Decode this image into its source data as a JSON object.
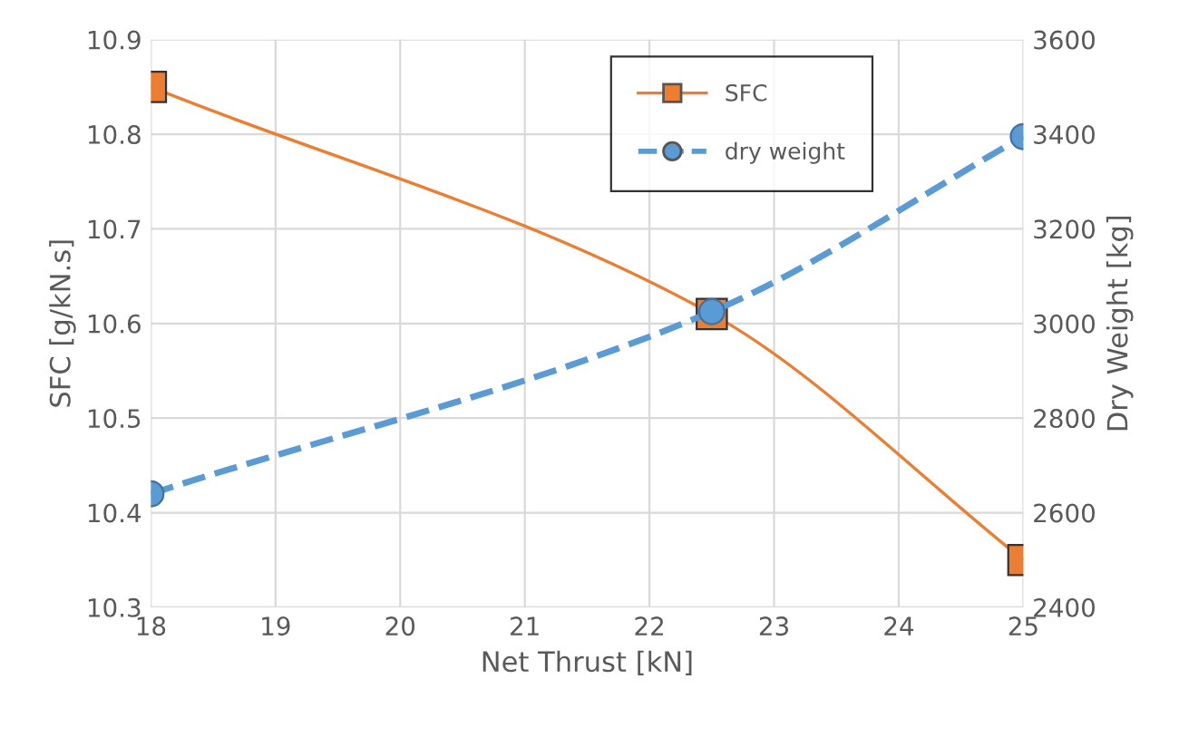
{
  "chart_data": {
    "type": "line",
    "xlabel": "Net Thrust [kN]",
    "ylabel": "SFC [g/kN.s]",
    "y2label": "Dry Weight [kg]",
    "x": [
      18,
      22.5,
      25
    ],
    "series": [
      {
        "name": "SFC",
        "color": "#ed7d31",
        "values": [
          10.85,
          10.61,
          10.35
        ],
        "marker": "square",
        "line_style": "solid"
      },
      {
        "name": "dry weight",
        "color": "#5b9bd5",
        "values": [
          2640,
          3025,
          3395
        ],
        "axis": "y2",
        "marker": "circle",
        "line_style": "dashed"
      }
    ],
    "xlim": [
      18,
      25
    ],
    "xticks": [
      18,
      19,
      20,
      21,
      22,
      23,
      24,
      25
    ],
    "ylim": [
      10.3,
      10.9
    ],
    "yticks": [
      {
        "value": 10.3,
        "label": "10.3"
      },
      {
        "value": 10.4,
        "label": "10.4"
      },
      {
        "value": 10.5,
        "label": "10.5"
      },
      {
        "value": 10.6,
        "label": "10.6"
      },
      {
        "value": 10.7,
        "label": "10.7"
      },
      {
        "value": 10.8,
        "label": "10.8"
      },
      {
        "value": 10.9,
        "label": "10.9"
      }
    ],
    "y2lim": [
      2400,
      3600
    ],
    "y2ticks": [
      2400,
      2600,
      2800,
      3000,
      3200,
      3400,
      3600
    ],
    "grid": true,
    "legend": "top right"
  }
}
